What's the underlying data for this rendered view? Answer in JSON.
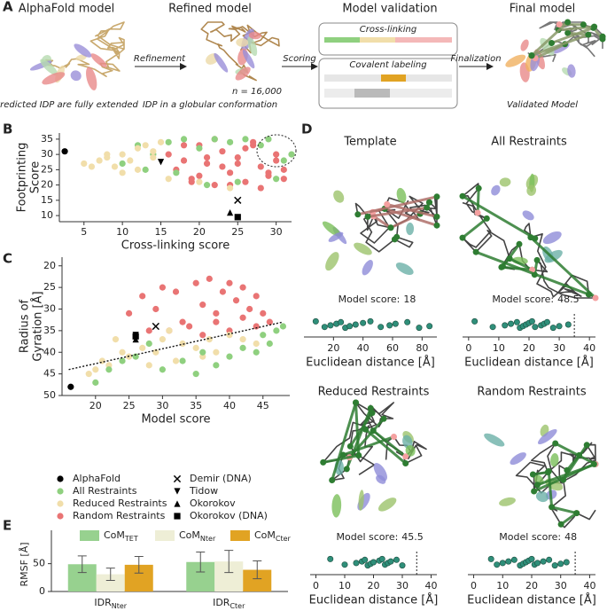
{
  "panel_letters": [
    "A",
    "B",
    "C",
    "D",
    "E"
  ],
  "workflow": {
    "titles": [
      "AlphaFold model",
      "Refined model",
      "Model validation",
      "Final model"
    ],
    "steps": [
      "Refinement",
      "Scoring",
      "Finalization"
    ],
    "captions": [
      "Predicted IDP are fully extended",
      "IDP in a globular conformation",
      "Validated Model"
    ],
    "n_label": "n = 16,000",
    "validation_boxes": [
      "Cross-linking",
      "Covalent labeling"
    ]
  },
  "chart_data": [
    {
      "type": "scatter",
      "xlabel": "Cross-linking score",
      "ylabel": [
        "Footprinting",
        "Score"
      ],
      "xlim": [
        1.8,
        32
      ],
      "ylim": [
        8,
        37
      ],
      "xticks": [
        5,
        10,
        15,
        20,
        25,
        30
      ],
      "yticks": [
        10,
        15,
        20,
        25,
        30,
        35
      ],
      "series": [
        {
          "name": "Random Restraints",
          "color": "#e97474",
          "marker": "circle",
          "x": [
            16,
            17,
            18,
            19,
            20,
            21,
            22,
            23,
            24,
            25,
            26,
            27,
            28,
            29,
            30,
            31,
            18,
            20,
            22,
            24,
            26,
            28,
            30,
            21,
            23,
            25,
            27,
            29,
            19,
            31
          ],
          "y": [
            30,
            25,
            28,
            22,
            33,
            27,
            20,
            31,
            24,
            29,
            21,
            34,
            26,
            23,
            30,
            25,
            33,
            23,
            35,
            20,
            32,
            19,
            28,
            29,
            26,
            27,
            33,
            24,
            21,
            22
          ]
        },
        {
          "name": "All Restraints",
          "color": "#8fd07f",
          "marker": "circle",
          "x": [
            10,
            12,
            14,
            16,
            18,
            20,
            22,
            24,
            26,
            28,
            30,
            32,
            13,
            17,
            21,
            25,
            29,
            31
          ],
          "y": [
            27,
            33,
            30,
            34,
            35,
            32,
            35,
            34,
            35,
            33,
            22,
            30,
            25,
            24,
            20,
            21,
            35,
            28
          ]
        },
        {
          "name": "Reduced Restraints",
          "color": "#f1deaa",
          "marker": "circle",
          "x": [
            5,
            6,
            7,
            8,
            9,
            10,
            11,
            12,
            13,
            14,
            15,
            16,
            8,
            10,
            12,
            14,
            20,
            24
          ],
          "y": [
            27,
            26,
            28,
            29,
            26,
            30,
            28,
            32,
            33,
            29,
            34,
            22,
            30,
            24,
            25,
            31,
            21,
            19
          ]
        },
        {
          "name": "AlphaFold",
          "color": "#000000",
          "marker": "circle",
          "x": [
            2.5
          ],
          "y": [
            31
          ]
        },
        {
          "name": "Demir  (DNA)",
          "color": "#000000",
          "marker": "x",
          "x": [
            25
          ],
          "y": [
            15
          ]
        },
        {
          "name": "Tidow",
          "color": "#000000",
          "marker": "tri-down",
          "x": [
            15
          ],
          "y": [
            27.5
          ]
        },
        {
          "name": "Okorokov",
          "color": "#000000",
          "marker": "tri-up",
          "x": [
            24
          ],
          "y": [
            11
          ]
        },
        {
          "name": "Okorokov (DNA)",
          "color": "#000000",
          "marker": "square",
          "x": [
            25
          ],
          "y": [
            9.5
          ]
        }
      ]
    },
    {
      "type": "scatter",
      "xlabel": "Model score",
      "ylabel": [
        "Radius of",
        "Gyration [Å]"
      ],
      "xlim": [
        15,
        49
      ],
      "ylim": [
        18,
        50
      ],
      "y_inverted": true,
      "xticks": [
        20,
        25,
        30,
        35,
        40,
        45
      ],
      "yticks": [
        20,
        25,
        30,
        35,
        40,
        45,
        50
      ],
      "trendline": {
        "x": [
          16,
          48
        ],
        "y": [
          44,
          33
        ]
      },
      "series": [
        {
          "name": "Random Restraints",
          "color": "#e97474",
          "marker": "circle",
          "x": [
            25,
            27,
            29,
            30,
            32,
            33,
            35,
            36,
            37,
            38,
            39,
            40,
            41,
            42,
            43,
            44,
            45,
            31,
            34,
            36,
            38,
            40,
            42,
            44,
            46,
            28
          ],
          "y": [
            31,
            27,
            30,
            25,
            26,
            33,
            24,
            29,
            23,
            31,
            26,
            24,
            28,
            25,
            30,
            27,
            31,
            35,
            34,
            36,
            33,
            35,
            32,
            34,
            33,
            35
          ]
        },
        {
          "name": "Reduced Restraints",
          "color": "#f1deaa",
          "marker": "circle",
          "x": [
            19,
            20,
            21,
            22,
            24,
            25,
            27,
            29,
            30,
            32,
            33,
            35,
            37,
            38,
            40,
            42,
            44,
            23,
            28,
            31,
            36
          ],
          "y": [
            45,
            44,
            42,
            43,
            40,
            41,
            39,
            40,
            37,
            42,
            38,
            39,
            37,
            40,
            36,
            37,
            38,
            37,
            43,
            35,
            41
          ]
        },
        {
          "name": "All Restraints",
          "color": "#8fd07f",
          "marker": "circle",
          "x": [
            20,
            22,
            24,
            26,
            30,
            33,
            36,
            38,
            40,
            42,
            44,
            45,
            46,
            47,
            48,
            28,
            35
          ],
          "y": [
            47,
            44,
            42,
            41,
            44,
            42,
            40,
            43,
            41,
            39,
            40,
            36,
            38,
            35,
            34,
            38,
            45
          ]
        },
        {
          "name": "AlphaFold",
          "color": "#000000",
          "marker": "circle",
          "x": [
            16.3
          ],
          "y": [
            48
          ]
        },
        {
          "name": "Demir  (DNA)",
          "color": "#000000",
          "marker": "x",
          "x": [
            29
          ],
          "y": [
            34
          ]
        },
        {
          "name": "Tidow",
          "color": "#000000",
          "marker": "tri-down",
          "x": [
            26
          ],
          "y": [
            36
          ]
        },
        {
          "name": "Okorokov",
          "color": "#000000",
          "marker": "tri-up",
          "x": [
            26
          ],
          "y": [
            37
          ]
        },
        {
          "name": "Okorokov (DNA)",
          "color": "#000000",
          "marker": "square",
          "x": [
            26
          ],
          "y": [
            36.3
          ]
        }
      ]
    },
    {
      "type": "bar",
      "ylabel": "RMSF [Å]",
      "ylim": [
        0,
        110
      ],
      "yticks": [
        0,
        50
      ],
      "categories": [
        {
          "text": "IDR",
          "sub": "Nter"
        },
        {
          "text": "IDR",
          "sub": "Cter"
        }
      ],
      "series": [
        {
          "name": "CoM",
          "name_sub": "TET",
          "color": "#97d18f",
          "values": [
            49,
            53
          ],
          "errors": [
            15,
            18
          ]
        },
        {
          "name": "CoM",
          "name_sub": "Nter",
          "color": "#eeeed6",
          "values": [
            31,
            54
          ],
          "errors": [
            11,
            20
          ]
        },
        {
          "name": "CoM",
          "name_sub": "Cter",
          "color": "#e1a323",
          "values": [
            48,
            39
          ],
          "errors": [
            15,
            16
          ]
        }
      ]
    }
  ],
  "score_prefix": "Model score:",
  "structures": [
    {
      "title": "Template",
      "score": 18,
      "strip": {
        "type": "strip",
        "xlabel": "Euclidean distance [Å]",
        "xlim": [
          0,
          90
        ],
        "xticks": [
          20,
          40,
          60,
          80
        ],
        "values": [
          8,
          14,
          18,
          22,
          25,
          28,
          31,
          35,
          40,
          45,
          52,
          58,
          62,
          70,
          78,
          85
        ]
      }
    },
    {
      "title": "All Restraints",
      "score": 48.5,
      "strip": {
        "type": "strip",
        "xlabel": "Euclidean distance [Å]",
        "xlim": [
          -2,
          42
        ],
        "xticks": [
          0,
          10,
          20,
          30,
          40
        ],
        "threshold": 35,
        "values": [
          2,
          8,
          12,
          14,
          16,
          17,
          18,
          19,
          20,
          21,
          22,
          24,
          25,
          26,
          28,
          30,
          33
        ]
      }
    },
    {
      "title": "Reduced Restraints",
      "score": 45.5,
      "strip": {
        "type": "strip",
        "xlabel": "Euclidean distance [Å]",
        "xlim": [
          -2,
          42
        ],
        "xticks": [
          0,
          10,
          20,
          30,
          40
        ],
        "threshold": 35,
        "values": [
          5,
          10,
          14,
          16,
          17,
          18,
          19,
          20,
          22,
          23,
          24,
          25,
          26,
          28,
          30
        ]
      }
    },
    {
      "title": "Random Restraints",
      "score": 48,
      "strip": {
        "type": "strip",
        "xlabel": "Euclidean distance [Å]",
        "xlim": [
          -2,
          42
        ],
        "xticks": [
          0,
          10,
          20,
          30,
          40
        ],
        "threshold": 35,
        "values": [
          6,
          8,
          10,
          12,
          14,
          16,
          17,
          18,
          19,
          20,
          21,
          22,
          24,
          26,
          28,
          30,
          32
        ]
      }
    }
  ]
}
